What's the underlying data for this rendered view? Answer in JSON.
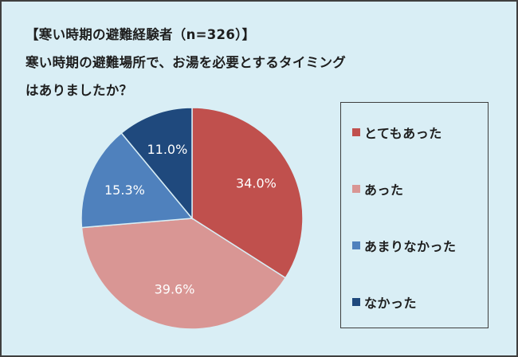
{
  "header": {
    "subtitle": "【寒い時期の避難経験者（n=326）】",
    "title_line1": "寒い時期の避難場所で、お湯を必要とするタイミング",
    "title_line2": "はありましたか？"
  },
  "chart_data": {
    "type": "pie",
    "title": "寒い時期の避難場所で、お湯を必要とするタイミングはありましたか？",
    "subtitle": "【寒い時期の避難経験者（n=326）】",
    "unit": "%",
    "legend_position": "right",
    "slices": [
      {
        "label": "とてもあった",
        "value": 34.0,
        "display": "34.0%",
        "color": "#c0504d"
      },
      {
        "label": "あった",
        "value": 39.6,
        "display": "39.6%",
        "color": "#d99694"
      },
      {
        "label": "あまりなかった",
        "value": 15.3,
        "display": "15.3%",
        "color": "#4f81bd"
      },
      {
        "label": "なかった",
        "value": 11.0,
        "display": "11.0%",
        "color": "#1f497d"
      }
    ]
  },
  "colors": {
    "background": "#d9eef5",
    "border": "#3f3f3f",
    "slice_divider": "#d9eef5",
    "label_text": "#ffffff"
  }
}
